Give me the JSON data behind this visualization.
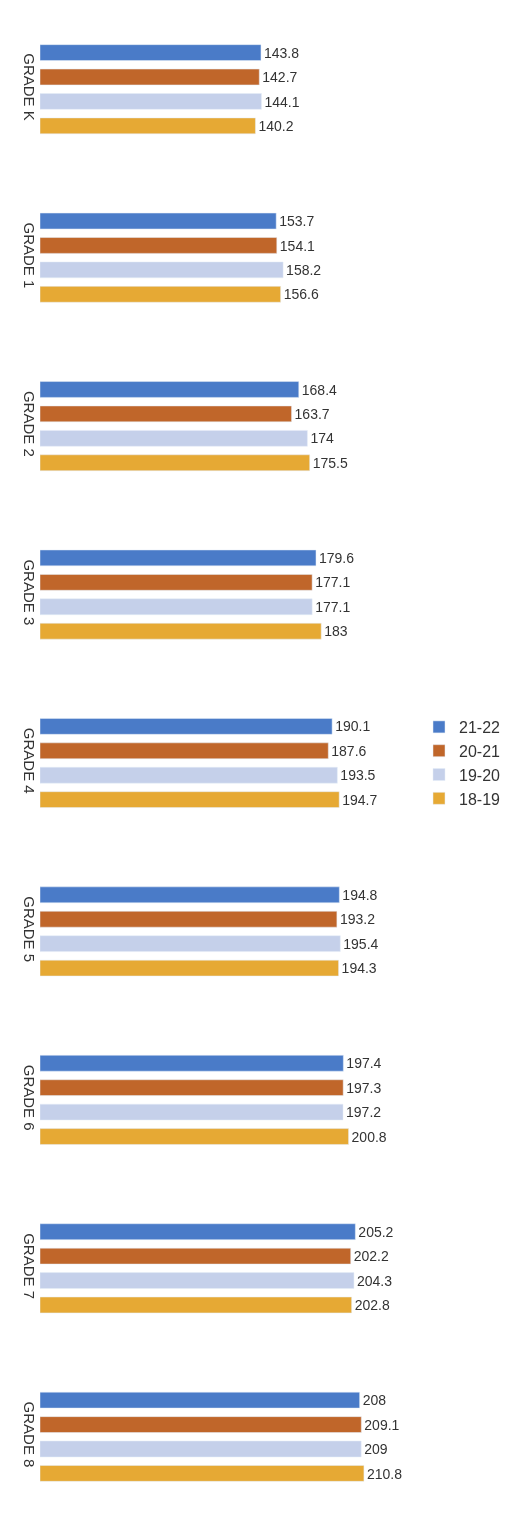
{
  "chart_data": {
    "type": "bar",
    "orientation": "horizontal",
    "data_labels": true,
    "legend": "right",
    "categories": [
      "GRADE K",
      "GRADE 1",
      "GRADE 2",
      "GRADE 3",
      "GRADE 4",
      "GRADE 5",
      "GRADE 6",
      "GRADE 7",
      "GRADE 8"
    ],
    "series": [
      {
        "name": "21-22",
        "color": "#4a7bc8",
        "values": [
          143.8,
          153.7,
          168.4,
          179.6,
          190.1,
          194.8,
          197.4,
          205.2,
          208
        ]
      },
      {
        "name": "20-21",
        "color": "#c0662a",
        "values": [
          142.7,
          154.1,
          163.7,
          177.1,
          187.6,
          193.2,
          197.3,
          202.2,
          209.1
        ]
      },
      {
        "name": "19-20",
        "color": "#c5d0ea",
        "values": [
          144.1,
          158.2,
          174,
          177.1,
          193.5,
          195.4,
          197.2,
          204.3,
          209
        ]
      },
      {
        "name": "18-19",
        "color": "#e6a934",
        "values": [
          140.2,
          156.6,
          175.5,
          183,
          194.7,
          194.3,
          200.8,
          202.8,
          210.8
        ]
      }
    ]
  }
}
